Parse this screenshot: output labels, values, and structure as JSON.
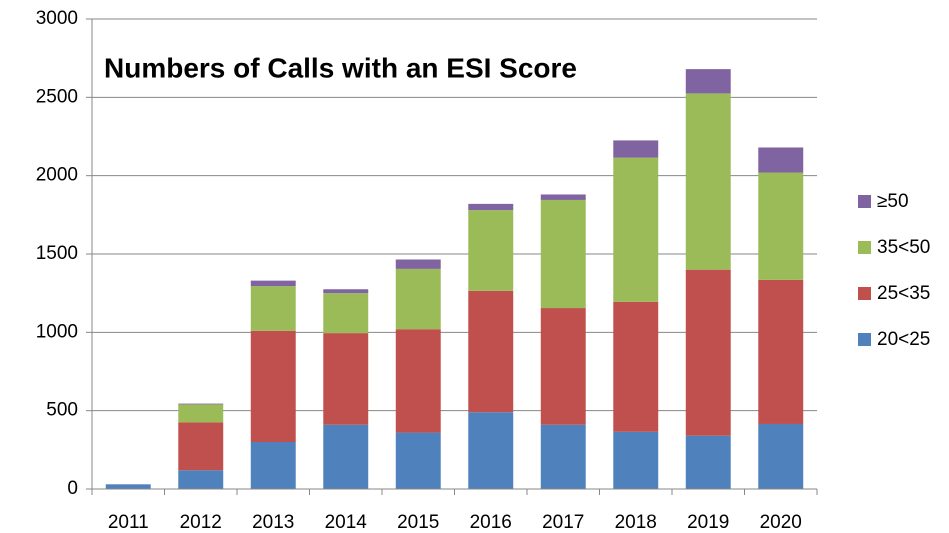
{
  "chart_data": {
    "type": "stacked_bar",
    "title": "Numbers of Calls with an ESI Score",
    "categories": [
      "2011",
      "2012",
      "2013",
      "2014",
      "2015",
      "2016",
      "2017",
      "2018",
      "2019",
      "2020"
    ],
    "series": [
      {
        "name": "20<25",
        "color": "#4f81bd",
        "values": [
          30,
          120,
          300,
          410,
          360,
          490,
          410,
          365,
          340,
          415
        ]
      },
      {
        "name": "25<35",
        "color": "#c0504d",
        "values": [
          0,
          305,
          710,
          585,
          660,
          775,
          745,
          830,
          1060,
          920
        ]
      },
      {
        "name": "35<50",
        "color": "#9bbb59",
        "values": [
          0,
          115,
          285,
          255,
          385,
          515,
          690,
          920,
          1125,
          685
        ]
      },
      {
        "name": "≥50",
        "color": "#8064a2",
        "values": [
          0,
          5,
          35,
          25,
          60,
          40,
          35,
          110,
          155,
          160
        ]
      }
    ],
    "ylim": [
      0,
      3000
    ],
    "yticks": [
      0,
      500,
      1000,
      1500,
      2000,
      2500,
      3000
    ],
    "grid": true,
    "legend": "right"
  }
}
